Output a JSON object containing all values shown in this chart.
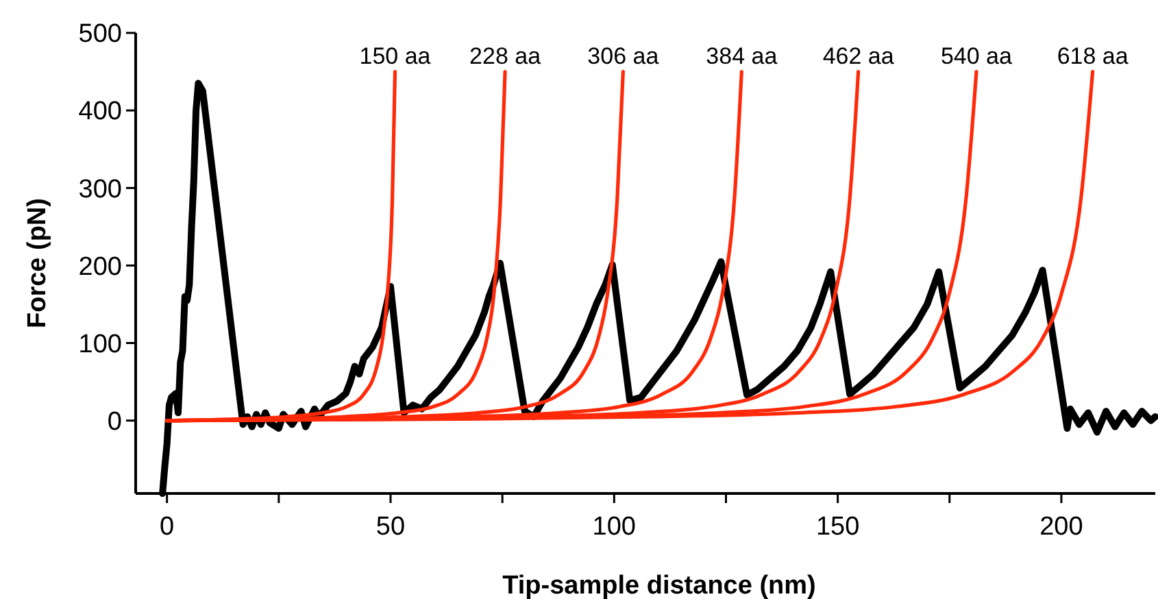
{
  "chart_data": {
    "type": "line",
    "xlabel": "Tip-sample distance (nm)",
    "ylabel": "Force (pN)",
    "xlim": [
      -7,
      221
    ],
    "ylim": [
      -94,
      500
    ],
    "xticks": [
      0,
      {
        "value": 25,
        "label": null
      },
      50,
      {
        "value": 75,
        "label": null
      },
      100,
      {
        "value": 125,
        "label": null
      },
      150,
      {
        "value": 175,
        "label": null
      },
      200
    ],
    "yticks": [
      0,
      100,
      200,
      300,
      400,
      500
    ],
    "grid": false,
    "marker": "none",
    "line_style": "solid",
    "series": [
      {
        "color": "#000000",
        "x": [
          -1,
          -0.5,
          0,
          0.5,
          1,
          2,
          2.5,
          3,
          3.5,
          4,
          4.5,
          5,
          5.5,
          6,
          6.5,
          7,
          8,
          17,
          18,
          19,
          20,
          21,
          22,
          23,
          25,
          26,
          28,
          30,
          31,
          33,
          34,
          36,
          38,
          40,
          41,
          42,
          43,
          44,
          46,
          48,
          50,
          53,
          55,
          57,
          59,
          61,
          63,
          65,
          67,
          69,
          71,
          72,
          73,
          74.5,
          80,
          82,
          84,
          86,
          88,
          90,
          92,
          94,
          96,
          98,
          99.6,
          103.5,
          106,
          108,
          110,
          112,
          114,
          116,
          118,
          120,
          122,
          123.9,
          129.7,
          132,
          135,
          138,
          141,
          144,
          146,
          148.4,
          152.7,
          155,
          158,
          161,
          164,
          167,
          170,
          172.6,
          177.3,
          180,
          183,
          186,
          189,
          192,
          194,
          195.8,
          201.3,
          202,
          204,
          206,
          208,
          210,
          212,
          214,
          216,
          218,
          220,
          221
        ],
        "values": [
          -94,
          -60,
          -30,
          20,
          30,
          35,
          10,
          75,
          90,
          160,
          155,
          175,
          250,
          310,
          400,
          435,
          425,
          -5,
          5,
          -8,
          8,
          -5,
          10,
          -3,
          -10,
          8,
          -5,
          12,
          -8,
          15,
          5,
          20,
          25,
          35,
          50,
          70,
          60,
          80,
          95,
          120,
          173,
          10,
          20,
          15,
          30,
          40,
          55,
          70,
          90,
          110,
          140,
          160,
          175,
          203,
          12,
          5,
          25,
          40,
          55,
          75,
          95,
          120,
          150,
          175,
          201,
          26,
          30,
          45,
          60,
          75,
          90,
          110,
          130,
          155,
          180,
          205,
          33,
          40,
          55,
          70,
          90,
          120,
          150,
          192,
          34,
          45,
          60,
          80,
          100,
          120,
          150,
          192,
          42,
          55,
          70,
          90,
          110,
          140,
          165,
          194,
          -10,
          15,
          -5,
          10,
          -15,
          12,
          -8,
          10,
          -5,
          12,
          0,
          5
        ]
      },
      {
        "name": "150 aa",
        "color": "#ff2a0a",
        "x": [
          0,
          16.1,
          26.8,
          34.8,
          40.2,
          44,
          46.6,
          48.2,
          49.3,
          50.4,
          51
        ],
        "values": [
          0,
          2,
          5,
          10,
          18,
          34,
          63,
          105,
          163,
          287,
          450
        ]
      },
      {
        "name": "228 aa",
        "color": "#ff2a0a",
        "x": [
          0,
          23.8,
          39.7,
          51.6,
          59.6,
          65.1,
          69.1,
          71.5,
          73.1,
          74.6,
          75.6
        ],
        "values": [
          0,
          2,
          5,
          10,
          18,
          34,
          63,
          105,
          163,
          287,
          450
        ]
      },
      {
        "name": "306 aa",
        "color": "#ff2a0a",
        "x": [
          0,
          32.1,
          53.6,
          69.6,
          80.3,
          87.8,
          93.2,
          96.4,
          98.5,
          100.7,
          102
        ],
        "values": [
          0,
          2,
          5,
          10,
          18,
          34,
          63,
          105,
          163,
          287,
          450
        ]
      },
      {
        "name": "384 aa",
        "color": "#ff2a0a",
        "x": [
          0,
          40.5,
          67.5,
          87.8,
          101.3,
          110.7,
          117.5,
          121.5,
          124.2,
          126.9,
          128.5
        ],
        "values": [
          0,
          2,
          5,
          10,
          18,
          34,
          63,
          105,
          163,
          287,
          450
        ]
      },
      {
        "name": "462 aa",
        "color": "#ff2a0a",
        "x": [
          0,
          48.7,
          81.2,
          105.6,
          121.8,
          133.2,
          141.3,
          146.2,
          149.4,
          152.7,
          154.6
        ],
        "values": [
          0,
          2,
          5,
          10,
          18,
          34,
          63,
          105,
          163,
          287,
          450
        ]
      },
      {
        "name": "540 aa",
        "color": "#ff2a0a",
        "x": [
          0,
          57,
          95.1,
          123.6,
          142.6,
          155.9,
          165.4,
          171.1,
          174.9,
          178.7,
          181
        ],
        "values": [
          0,
          2,
          5,
          10,
          18,
          34,
          63,
          105,
          163,
          287,
          450
        ]
      },
      {
        "name": "618 aa",
        "color": "#ff2a0a",
        "x": [
          0,
          65.2,
          108.7,
          141.3,
          163.1,
          178.3,
          189.1,
          195.7,
          200,
          204.4,
          207
        ],
        "values": [
          0,
          2,
          5,
          10,
          18,
          34,
          63,
          105,
          163,
          287,
          450
        ]
      }
    ]
  }
}
